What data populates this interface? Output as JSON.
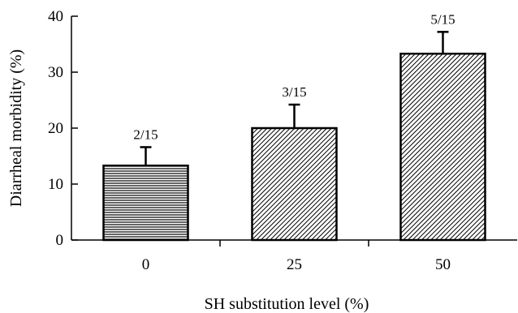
{
  "chart_data": {
    "type": "bar",
    "categories": [
      "0",
      "25",
      "50"
    ],
    "values": [
      13.3,
      20.0,
      33.3
    ],
    "error_plus": [
      3.3,
      4.2,
      3.9
    ],
    "data_labels": [
      "2/15",
      "3/15",
      "5/15"
    ],
    "bar_patterns": [
      "horizontal-lines",
      "diagonal-hatch",
      "diagonal-hatch"
    ],
    "xlabel": "SH substitution level (%)",
    "ylabel": "Diarrheal morbidity (%)",
    "ylim": [
      0,
      40
    ],
    "yticks": [
      0,
      10,
      20,
      30,
      40
    ],
    "grid": false,
    "legend": "none",
    "colors": {
      "bar_fill": "#ffffff",
      "stroke": "#000000"
    }
  }
}
